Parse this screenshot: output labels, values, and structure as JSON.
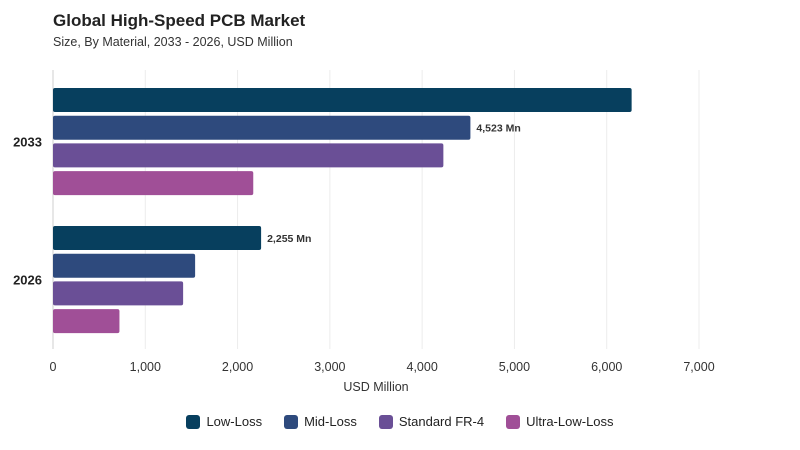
{
  "header": {
    "title": "Global High-Speed PCB Market",
    "subtitle": "Size, By Material, 2033 - 2026, USD Million"
  },
  "colors": {
    "Low-Loss": "#073f5e",
    "Mid-Loss": "#2e4a7d",
    "Standard FR-4": "#6a4f96",
    "Ultra-Low-Loss": "#a04f97"
  },
  "chart_data": {
    "type": "bar",
    "orientation": "horizontal",
    "title": "Global High-Speed PCB Market",
    "subtitle": "Size, By Material, 2033 - 2026, USD Million",
    "xlabel": "USD Million",
    "ylabel": "",
    "categories": [
      "2033",
      "2026"
    ],
    "xlim": [
      0,
      7000
    ],
    "xticks": [
      0,
      1000,
      2000,
      3000,
      4000,
      5000,
      6000,
      7000
    ],
    "xtick_labels": [
      "0",
      "1,000",
      "2,000",
      "3,000",
      "4,000",
      "5,000",
      "6,000",
      "7,000"
    ],
    "grid": true,
    "legend_position": "bottom",
    "series": [
      {
        "name": "Low-Loss",
        "values": [
          6270,
          2255
        ]
      },
      {
        "name": "Mid-Loss",
        "values": [
          4523,
          1540
        ]
      },
      {
        "name": "Standard FR-4",
        "values": [
          4230,
          1410
        ]
      },
      {
        "name": "Ultra-Low-Loss",
        "values": [
          2170,
          720
        ]
      }
    ],
    "annotations": [
      {
        "category": "2033",
        "series": "Mid-Loss",
        "text": "4,523 Mn"
      },
      {
        "category": "2026",
        "series": "Low-Loss",
        "text": "2,255 Mn"
      }
    ]
  }
}
